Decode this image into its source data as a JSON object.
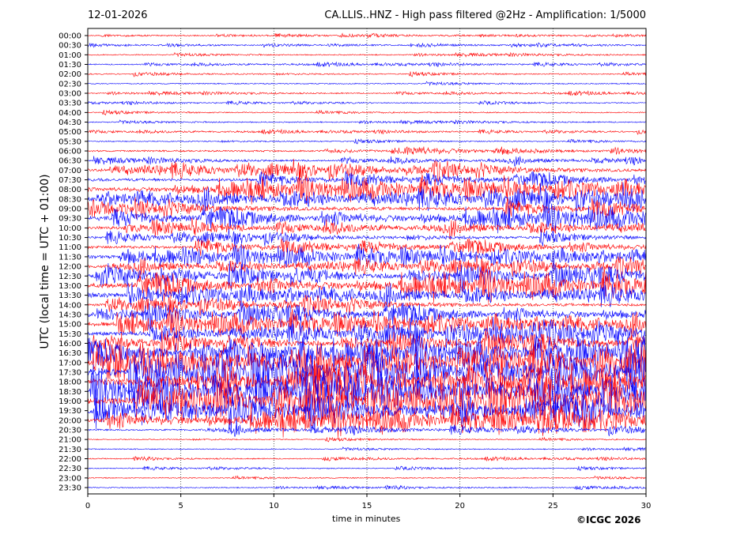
{
  "chart_data": {
    "type": "line",
    "subtype": "helicorder",
    "date": "12-01-2026",
    "title": "CA.LLIS..HNZ - High pass filtered @2Hz - Amplification: 1/5000",
    "xlabel": "time in minutes",
    "ylabel": "UTC (local time = UTC + 01:00)",
    "xlim": [
      0,
      30
    ],
    "x_ticks": [
      "0",
      "5",
      "10",
      "15",
      "20",
      "25",
      "30"
    ],
    "x_grid": [
      5,
      10,
      15,
      20,
      25
    ],
    "row_labels": [
      "00:00",
      "00:30",
      "01:00",
      "01:30",
      "02:00",
      "02:30",
      "03:00",
      "03:30",
      "04:00",
      "04:30",
      "05:00",
      "05:30",
      "06:00",
      "06:30",
      "07:00",
      "07:30",
      "08:00",
      "08:30",
      "09:00",
      "09:30",
      "10:00",
      "10:30",
      "11:00",
      "11:30",
      "12:00",
      "12:30",
      "13:00",
      "13:30",
      "14:00",
      "14:30",
      "15:00",
      "15:30",
      "16:00",
      "16:30",
      "17:00",
      "17:30",
      "18:00",
      "18:30",
      "19:00",
      "19:30",
      "20:00",
      "20:30",
      "21:00",
      "21:30",
      "22:00",
      "22:30",
      "23:00",
      "23:30"
    ],
    "relative_amplitude": [
      0.04,
      0.04,
      0.05,
      0.05,
      0.05,
      0.05,
      0.05,
      0.04,
      0.05,
      0.05,
      0.05,
      0.05,
      0.1,
      0.08,
      0.2,
      0.2,
      0.3,
      0.3,
      0.25,
      0.3,
      0.2,
      0.15,
      0.2,
      0.25,
      0.2,
      0.3,
      0.35,
      0.3,
      0.2,
      0.3,
      0.3,
      0.3,
      0.3,
      0.4,
      0.5,
      0.55,
      0.5,
      0.5,
      0.55,
      0.45,
      0.35,
      0.1,
      0.04,
      0.04,
      0.04,
      0.04,
      0.04,
      0.04
    ],
    "colors": {
      "hour": "#ff0000",
      "half_hour": "#0000ff"
    }
  },
  "copyright": "©ICGC 2026"
}
